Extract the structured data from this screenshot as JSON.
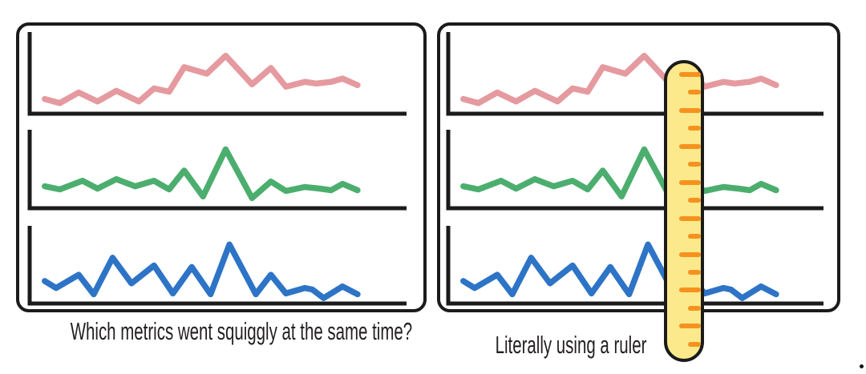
{
  "colors": {
    "background": "#ffffff",
    "panel_border": "#1b1b1b",
    "axis": "#1b1b1b",
    "caption_text": "#231f20",
    "ruler_fill": "#fbe98b",
    "ruler_border": "#1b1b1b",
    "ruler_tick": "#f5921e"
  },
  "chart_data": {
    "type": "line",
    "panels": [
      {
        "caption": "Which metrics went squiggly at the same time?",
        "has_ruler_overlay": false
      },
      {
        "caption": "Literally using a ruler",
        "has_ruler_overlay": true
      }
    ],
    "note": "Same three unlabeled sparkline metrics repeated in both panels; points normalized 0-100 per mini-chart (y: 0 = baseline, 100 = top of plot)",
    "x_range": [
      0,
      100
    ],
    "y_range": [
      0,
      100
    ],
    "axes": "bare L-shaped axes, no tick labels",
    "grid": false,
    "legend": false,
    "series": [
      {
        "name": "top-metric-pink",
        "color": "#e59aa0",
        "points": [
          [
            4,
            18
          ],
          [
            8,
            13
          ],
          [
            13,
            26
          ],
          [
            18,
            15
          ],
          [
            23,
            28
          ],
          [
            29,
            15
          ],
          [
            33,
            31
          ],
          [
            37,
            27
          ],
          [
            41,
            57
          ],
          [
            47,
            49
          ],
          [
            52,
            71
          ],
          [
            59,
            36
          ],
          [
            64,
            56
          ],
          [
            68,
            33
          ],
          [
            73,
            39
          ],
          [
            76,
            37
          ],
          [
            80,
            39
          ],
          [
            83,
            43
          ],
          [
            87,
            35
          ]
        ]
      },
      {
        "name": "middle-metric-green",
        "color": "#4cae6e",
        "points": [
          [
            4,
            28
          ],
          [
            8,
            24
          ],
          [
            14,
            35
          ],
          [
            18,
            25
          ],
          [
            23,
            37
          ],
          [
            28,
            28
          ],
          [
            33,
            35
          ],
          [
            37,
            24
          ],
          [
            41,
            48
          ],
          [
            46,
            15
          ],
          [
            52,
            75
          ],
          [
            59,
            13
          ],
          [
            64,
            34
          ],
          [
            68,
            22
          ],
          [
            73,
            27
          ],
          [
            77,
            25
          ],
          [
            80,
            23
          ],
          [
            83,
            31
          ],
          [
            87,
            23
          ]
        ]
      },
      {
        "name": "bottom-metric-blue",
        "color": "#2e74c6",
        "points": [
          [
            4,
            29
          ],
          [
            7,
            20
          ],
          [
            13,
            37
          ],
          [
            17,
            12
          ],
          [
            22,
            59
          ],
          [
            27,
            26
          ],
          [
            33,
            49
          ],
          [
            38,
            13
          ],
          [
            43,
            47
          ],
          [
            48,
            12
          ],
          [
            53,
            76
          ],
          [
            60,
            12
          ],
          [
            64,
            37
          ],
          [
            68,
            13
          ],
          [
            73,
            20
          ],
          [
            75,
            18
          ],
          [
            78,
            7
          ],
          [
            83,
            22
          ],
          [
            87,
            12
          ]
        ]
      }
    ]
  },
  "ruler": {
    "tick_count": 16,
    "tick_pattern": "alternating long/short, top tick long, right-aligned"
  }
}
